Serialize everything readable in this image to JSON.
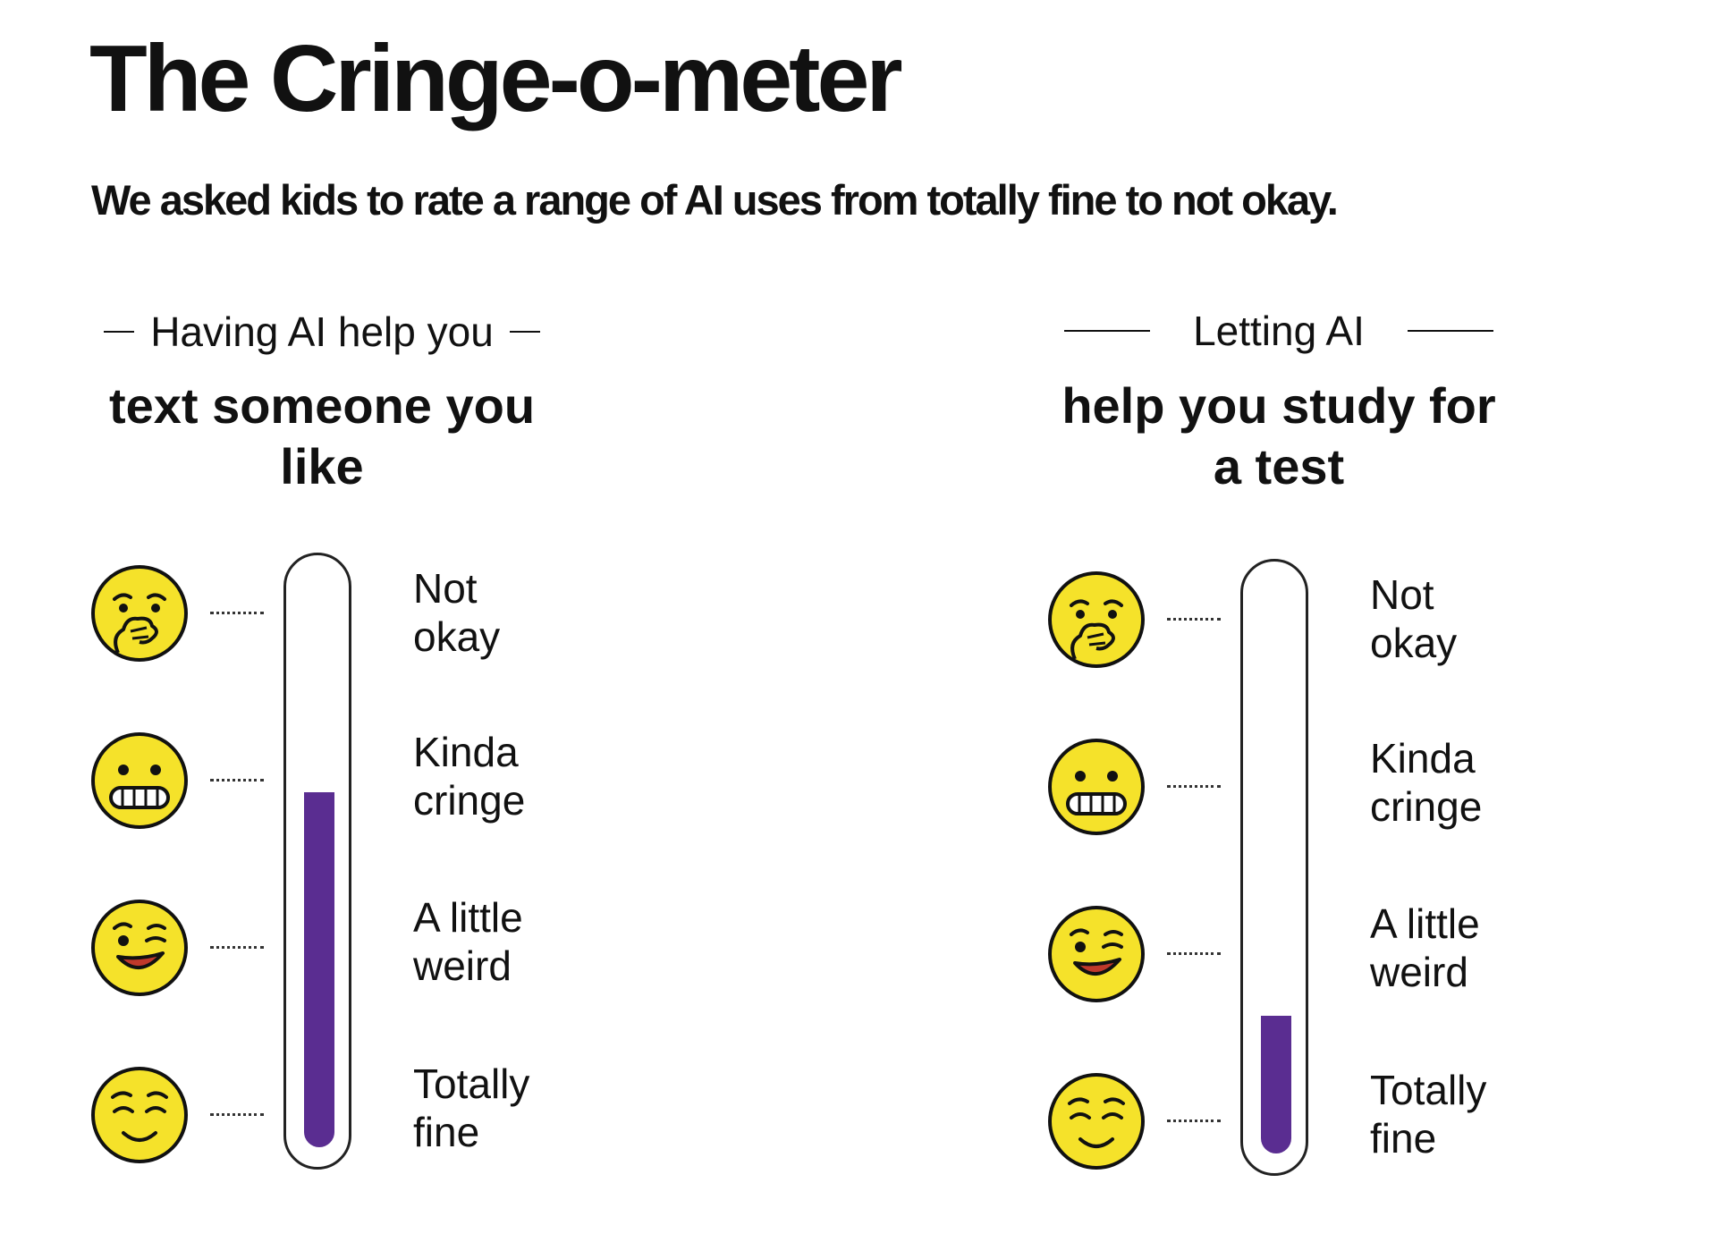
{
  "title": "The Cringe-o-meter",
  "subtitle": "We asked kids to rate a range of AI uses from totally fine to not okay.",
  "colors": {
    "fill": "#5a2d91",
    "emoji_face": "#f5e22a",
    "text": "#111111"
  },
  "chart_data": [
    {
      "type": "bar",
      "heading": "Having AI help you",
      "topic": "text someone\nyou like",
      "scale": [
        "Not\nokay",
        "Kinda\ncringe",
        "A little\nweird",
        "Totally\nfine"
      ],
      "emojis": [
        "hand-over-mouth-emoji",
        "grimacing-emoji",
        "winking-emoji",
        "relieved-emoji"
      ],
      "value": 0.62,
      "ylim": [
        0,
        1
      ]
    },
    {
      "type": "bar",
      "heading": "Letting AI",
      "topic": "help you study\nfor a test",
      "scale": [
        "Not\nokay",
        "Kinda\ncringe",
        "A little\nweird",
        "Totally\nfine"
      ],
      "emojis": [
        "hand-over-mouth-emoji",
        "grimacing-emoji",
        "winking-emoji",
        "relieved-emoji"
      ],
      "value": 0.24,
      "ylim": [
        0,
        1
      ]
    }
  ]
}
